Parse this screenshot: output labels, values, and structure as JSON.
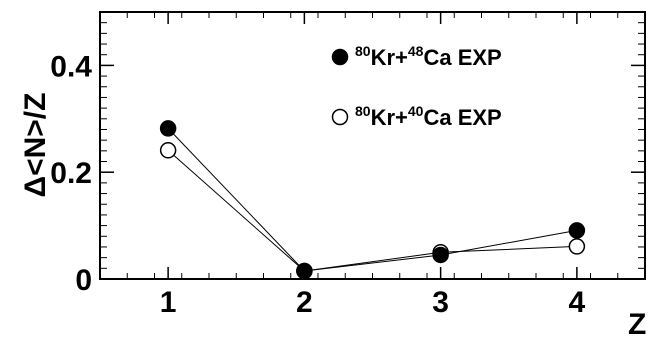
{
  "chart_data": {
    "type": "scatter",
    "xlabel": "Z",
    "ylabel": "Δ<N>/Z",
    "xlim": [
      0.5,
      4.5
    ],
    "ylim": [
      0,
      0.5
    ],
    "x_ticks": [
      1,
      2,
      3,
      4
    ],
    "y_ticks": [
      0,
      0.2,
      0.4
    ],
    "y_tick_labels": [
      "0",
      "0.2",
      "0.4"
    ],
    "legend_position": "top-right",
    "grid": false,
    "series": [
      {
        "name_parts": {
          "a": "80",
          "b": "Kr+",
          "c": "48",
          "d": "Ca EXP"
        },
        "marker": "filled-circle",
        "x": [
          1,
          2,
          3,
          4
        ],
        "y": [
          0.282,
          0.015,
          0.045,
          0.091
        ]
      },
      {
        "name_parts": {
          "a": "80",
          "b": "Kr+",
          "c": "40",
          "d": "Ca EXP"
        },
        "marker": "open-circle",
        "x": [
          1,
          2,
          3,
          4
        ],
        "y": [
          0.241,
          0.015,
          0.05,
          0.061
        ]
      }
    ]
  }
}
